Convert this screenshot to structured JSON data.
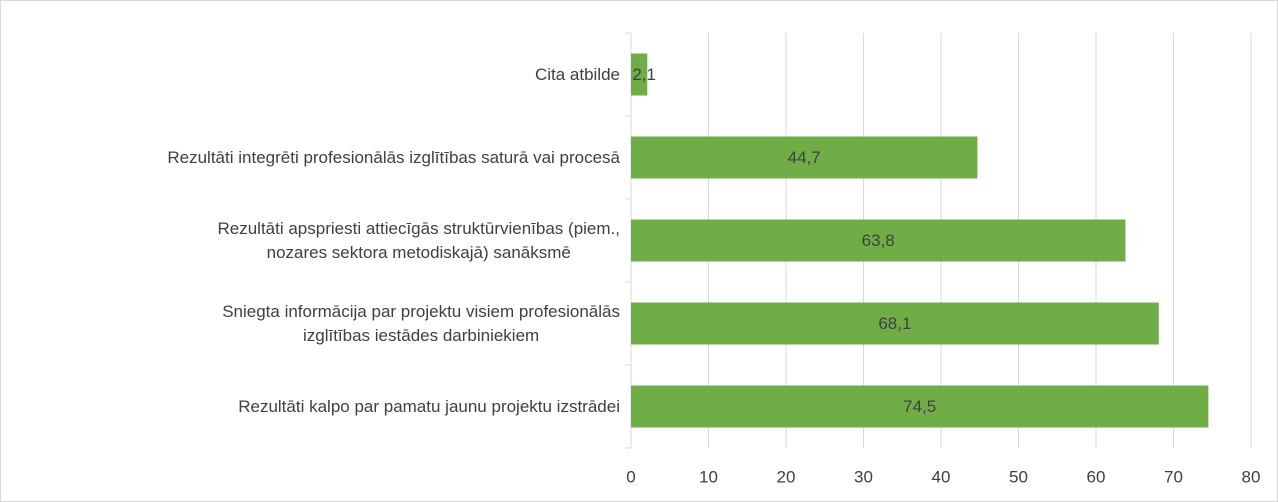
{
  "chart_data": {
    "type": "barh",
    "categories": [
      "Cita atbilde",
      "Rezultāti integrēti profesionālās izglītības saturā vai procesā",
      "Rezultāti apspriesti attiecīgās struktūrvienības (piem.,\nnozares sektora metodiskajā) sanāksmē",
      "Sniegta informācija par projektu visiem profesionālās\nizglītības iestādes darbiniekiem",
      "Rezultāti kalpo par pamatu jaunu projektu izstrādei"
    ],
    "values": [
      2.1,
      44.7,
      63.8,
      68.1,
      74.5
    ],
    "value_labels": [
      "2,1",
      "44,7",
      "63,8",
      "68,1",
      "74,5"
    ],
    "color": "#70ad47",
    "xlim": [
      0,
      80
    ],
    "xticks": [
      0,
      10,
      20,
      30,
      40,
      50,
      60,
      70,
      80
    ],
    "grid": true
  }
}
